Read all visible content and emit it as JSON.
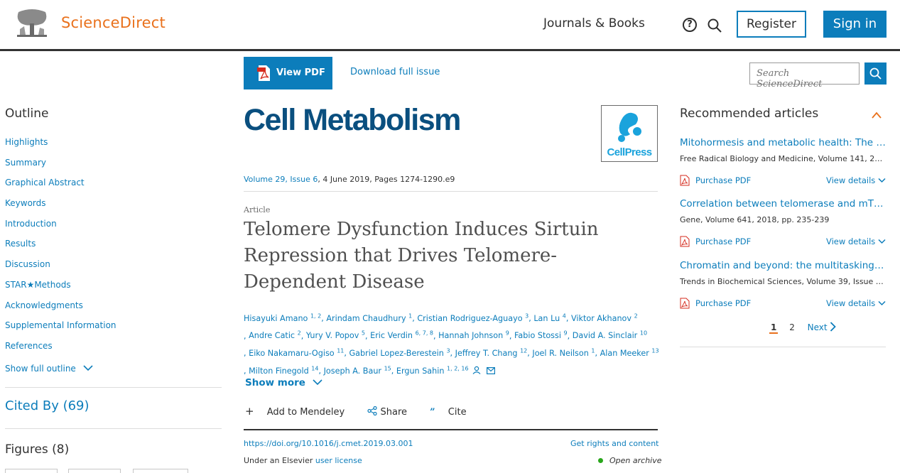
{
  "header": {
    "brand": "ScienceDirect",
    "journals_books": "Journals & Books",
    "help_glyph": "?",
    "register": "Register",
    "sign_in": "Sign in"
  },
  "toolbar": {
    "view_pdf": "View PDF",
    "download_issue": "Download full issue",
    "search_placeholder": "Search ScienceDirect"
  },
  "outline": {
    "title": "Outline",
    "items": [
      "Highlights",
      "Summary",
      "Graphical Abstract",
      "Keywords",
      "Introduction",
      "Results",
      "Discussion",
      "STAR★Methods",
      "Acknowledgments",
      "Supplemental Information",
      "References"
    ],
    "show_full": "Show full outline"
  },
  "cited_by": "Cited By (69)",
  "figures": "Figures (8)",
  "article": {
    "journal": "Cell Metabolism",
    "publisher_logo_text": "CellPress",
    "volume_link": "Volume 29, Issue 6",
    "volume_rest": ", 4 June 2019, Pages 1274-1290.e9",
    "type": "Article",
    "title": "Telomere Dysfunction Induces Sirtuin Repression that Drives Telomere-Dependent Disease",
    "authors": [
      {
        "name": "Hisayuki Amano",
        "sup": "1, 2"
      },
      {
        "name": "Arindam Chaudhury",
        "sup": "1"
      },
      {
        "name": "Cristian Rodriguez-Aguayo",
        "sup": "3"
      },
      {
        "name": "Lan Lu",
        "sup": "4"
      },
      {
        "name": "Viktor Akhanov",
        "sup": "2"
      },
      {
        "name": "Andre Catic",
        "sup": "2"
      },
      {
        "name": "Yury V. Popov",
        "sup": "5"
      },
      {
        "name": "Eric Verdin",
        "sup": "6, 7, 8"
      },
      {
        "name": "Hannah Johnson",
        "sup": "9"
      },
      {
        "name": "Fabio Stossi",
        "sup": "9"
      },
      {
        "name": "David A. Sinclair",
        "sup": "10"
      },
      {
        "name": "Eiko Nakamaru-Ogiso",
        "sup": "11"
      },
      {
        "name": "Gabriel Lopez-Berestein",
        "sup": "3"
      },
      {
        "name": "Jeffrey T. Chang",
        "sup": "12"
      },
      {
        "name": "Joel R. Neilson",
        "sup": "1"
      },
      {
        "name": "Alan Meeker",
        "sup": "13"
      },
      {
        "name": "Milton Finegold",
        "sup": "14"
      },
      {
        "name": "Joseph A. Baur",
        "sup": "15"
      },
      {
        "name": "Ergun Sahin",
        "sup": "1, 2, 16"
      }
    ],
    "show_more": "Show more",
    "add_mendeley": "Add to Mendeley",
    "share": "Share",
    "cite": "Cite",
    "doi": "https://doi.org/10.1016/j.cmet.2019.03.001",
    "rights": "Get rights and content",
    "license_prefix": "Under an Elsevier ",
    "license_link": "user license",
    "archive": "Open archive"
  },
  "recommended": {
    "title": "Recommended articles",
    "items": [
      {
        "title": "Mitohormesis and metabolic health: The int…",
        "source": "Free Radical Biology and Medicine, Volume 141, 2…",
        "pdf": "Purchase PDF",
        "details": "View details"
      },
      {
        "title": "Correlation between telomerase and mTOR …",
        "source": "Gene, Volume 641, 2018, pp. 235-239",
        "pdf": "Purchase PDF",
        "details": "View details"
      },
      {
        "title": "Chromatin and beyond: the multitasking rol…",
        "source": "Trends in Biochemical Sciences, Volume 39, Issue …",
        "pdf": "Purchase PDF",
        "details": "View details"
      }
    ],
    "pager": {
      "current": "1",
      "other": "2",
      "next": "Next"
    }
  },
  "colors": {
    "brand_orange": "#e9711c",
    "link_blue": "#0c7dbb",
    "journal_navy": "#0a4f7f",
    "archive_green": "#29a61b"
  }
}
